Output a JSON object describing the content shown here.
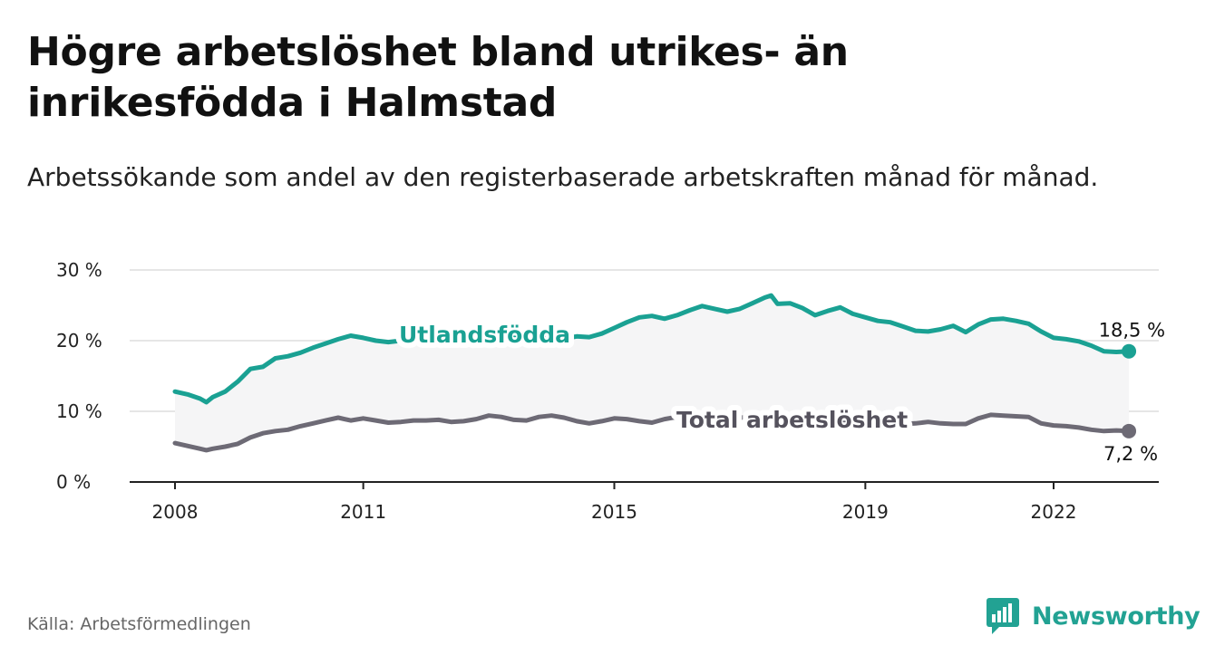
{
  "title": "Högre arbetslöshet bland utrikes- än inrikesfödda i Halmstad",
  "subtitle": "Arbetssökande som andel av den registerbaserade arbetskraften månad för månad.",
  "source": "Källa: Arbetsförmedlingen",
  "brand": {
    "name": "Newsworthy",
    "icon": "bar-chart-logo-icon",
    "color": "#22a293"
  },
  "chart_data": {
    "type": "line",
    "title": "Högre arbetslöshet bland utrikes- än inrikesfödda i Halmstad",
    "ylim": [
      0,
      30
    ],
    "xlim": [
      2007.55,
      2023.5
    ],
    "y_ticks": [
      0,
      10,
      20,
      30
    ],
    "y_tick_labels": [
      "0 %",
      "10 %",
      "20 %",
      "30 %"
    ],
    "x_ticks": [
      2008,
      2011,
      2015,
      2019,
      2022
    ],
    "x_tick_labels": [
      "2008",
      "2011",
      "2015",
      "2019",
      "2022"
    ],
    "grid": true,
    "series": [
      {
        "name": "Utlandsfödda",
        "color": "#1aa193",
        "end_label": "18,5 %",
        "points": [
          [
            2008.0,
            12.8
          ],
          [
            2008.2,
            12.4
          ],
          [
            2008.4,
            11.8
          ],
          [
            2008.5,
            11.3
          ],
          [
            2008.6,
            12.0
          ],
          [
            2008.8,
            12.8
          ],
          [
            2009.0,
            14.2
          ],
          [
            2009.2,
            16.0
          ],
          [
            2009.4,
            16.3
          ],
          [
            2009.6,
            17.5
          ],
          [
            2009.8,
            17.8
          ],
          [
            2010.0,
            18.3
          ],
          [
            2010.2,
            19.0
          ],
          [
            2010.4,
            19.6
          ],
          [
            2010.6,
            20.2
          ],
          [
            2010.8,
            20.7
          ],
          [
            2011.0,
            20.4
          ],
          [
            2011.2,
            20.0
          ],
          [
            2011.4,
            19.8
          ],
          [
            2011.6,
            20.0
          ],
          [
            2011.8,
            20.2
          ],
          [
            2012.0,
            20.3
          ],
          [
            2012.2,
            20.5
          ],
          [
            2012.4,
            20.9
          ],
          [
            2012.6,
            21.3
          ],
          [
            2012.8,
            20.9
          ],
          [
            2013.0,
            20.5
          ],
          [
            2013.2,
            20.2
          ],
          [
            2013.4,
            20.4
          ],
          [
            2013.6,
            20.1
          ],
          [
            2013.8,
            20.3
          ],
          [
            2014.0,
            20.6
          ],
          [
            2014.2,
            20.3
          ],
          [
            2014.4,
            20.6
          ],
          [
            2014.6,
            20.5
          ],
          [
            2014.8,
            21.0
          ],
          [
            2015.0,
            21.8
          ],
          [
            2015.2,
            22.6
          ],
          [
            2015.4,
            23.3
          ],
          [
            2015.6,
            23.5
          ],
          [
            2015.8,
            23.1
          ],
          [
            2016.0,
            23.6
          ],
          [
            2016.2,
            24.3
          ],
          [
            2016.4,
            24.9
          ],
          [
            2016.6,
            24.5
          ],
          [
            2016.8,
            24.1
          ],
          [
            2017.0,
            24.5
          ],
          [
            2017.2,
            25.3
          ],
          [
            2017.4,
            26.1
          ],
          [
            2017.5,
            26.4
          ],
          [
            2017.6,
            25.2
          ],
          [
            2017.8,
            25.3
          ],
          [
            2018.0,
            24.6
          ],
          [
            2018.2,
            23.6
          ],
          [
            2018.4,
            24.2
          ],
          [
            2018.6,
            24.7
          ],
          [
            2018.8,
            23.8
          ],
          [
            2019.0,
            23.3
          ],
          [
            2019.2,
            22.8
          ],
          [
            2019.4,
            22.6
          ],
          [
            2019.6,
            22.0
          ],
          [
            2019.8,
            21.4
          ],
          [
            2020.0,
            21.3
          ],
          [
            2020.2,
            21.6
          ],
          [
            2020.4,
            22.1
          ],
          [
            2020.6,
            21.2
          ],
          [
            2020.8,
            22.3
          ],
          [
            2021.0,
            23.0
          ],
          [
            2021.2,
            23.1
          ],
          [
            2021.4,
            22.8
          ],
          [
            2021.6,
            22.4
          ],
          [
            2021.8,
            21.3
          ],
          [
            2022.0,
            20.4
          ],
          [
            2022.2,
            20.2
          ],
          [
            2022.4,
            19.9
          ],
          [
            2022.6,
            19.3
          ],
          [
            2022.8,
            18.5
          ],
          [
            2023.0,
            18.4
          ],
          [
            2023.2,
            18.5
          ]
        ]
      },
      {
        "name": "Total arbetslöshet",
        "color": "#6d6a75",
        "end_label": "7,2 %",
        "points": [
          [
            2008.0,
            5.5
          ],
          [
            2008.2,
            5.1
          ],
          [
            2008.4,
            4.7
          ],
          [
            2008.5,
            4.5
          ],
          [
            2008.6,
            4.7
          ],
          [
            2008.8,
            5.0
          ],
          [
            2009.0,
            5.4
          ],
          [
            2009.2,
            6.3
          ],
          [
            2009.4,
            6.9
          ],
          [
            2009.6,
            7.2
          ],
          [
            2009.8,
            7.4
          ],
          [
            2010.0,
            7.9
          ],
          [
            2010.2,
            8.3
          ],
          [
            2010.4,
            8.7
          ],
          [
            2010.6,
            9.1
          ],
          [
            2010.8,
            8.7
          ],
          [
            2011.0,
            9.0
          ],
          [
            2011.2,
            8.7
          ],
          [
            2011.4,
            8.4
          ],
          [
            2011.6,
            8.5
          ],
          [
            2011.8,
            8.7
          ],
          [
            2012.0,
            8.7
          ],
          [
            2012.2,
            8.8
          ],
          [
            2012.4,
            8.5
          ],
          [
            2012.6,
            8.6
          ],
          [
            2012.8,
            8.9
          ],
          [
            2013.0,
            9.4
          ],
          [
            2013.2,
            9.2
          ],
          [
            2013.4,
            8.8
          ],
          [
            2013.6,
            8.7
          ],
          [
            2013.8,
            9.2
          ],
          [
            2014.0,
            9.4
          ],
          [
            2014.2,
            9.1
          ],
          [
            2014.4,
            8.6
          ],
          [
            2014.6,
            8.3
          ],
          [
            2014.8,
            8.6
          ],
          [
            2015.0,
            9.0
          ],
          [
            2015.2,
            8.9
          ],
          [
            2015.4,
            8.6
          ],
          [
            2015.6,
            8.4
          ],
          [
            2015.8,
            8.9
          ],
          [
            2016.0,
            9.2
          ],
          [
            2016.2,
            9.1
          ],
          [
            2016.4,
            9.0
          ],
          [
            2016.6,
            8.9
          ],
          [
            2016.8,
            9.0
          ],
          [
            2017.0,
            9.1
          ],
          [
            2017.2,
            9.2
          ],
          [
            2017.4,
            9.1
          ],
          [
            2017.6,
            9.0
          ],
          [
            2017.8,
            8.8
          ],
          [
            2018.0,
            8.7
          ],
          [
            2018.2,
            8.6
          ],
          [
            2018.4,
            8.5
          ],
          [
            2018.6,
            8.5
          ],
          [
            2018.8,
            8.4
          ],
          [
            2019.0,
            8.4
          ],
          [
            2019.2,
            8.3
          ],
          [
            2019.4,
            8.3
          ],
          [
            2019.6,
            8.2
          ],
          [
            2019.8,
            8.3
          ],
          [
            2020.0,
            8.5
          ],
          [
            2020.2,
            8.3
          ],
          [
            2020.4,
            8.2
          ],
          [
            2020.6,
            8.2
          ],
          [
            2020.8,
            9.0
          ],
          [
            2021.0,
            9.5
          ],
          [
            2021.2,
            9.4
          ],
          [
            2021.4,
            9.3
          ],
          [
            2021.6,
            9.2
          ],
          [
            2021.8,
            8.3
          ],
          [
            2022.0,
            8.0
          ],
          [
            2022.2,
            7.9
          ],
          [
            2022.4,
            7.7
          ],
          [
            2022.6,
            7.4
          ],
          [
            2022.8,
            7.2
          ],
          [
            2023.0,
            7.3
          ],
          [
            2023.2,
            7.2
          ]
        ]
      }
    ]
  }
}
